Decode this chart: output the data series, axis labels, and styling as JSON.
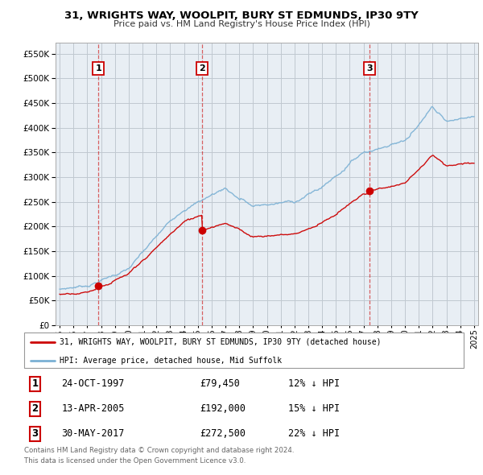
{
  "title": "31, WRIGHTS WAY, WOOLPIT, BURY ST EDMUNDS, IP30 9TY",
  "subtitle": "Price paid vs. HM Land Registry's House Price Index (HPI)",
  "sale_year_floats": [
    1997.81,
    2005.29,
    2017.41
  ],
  "sale_prices": [
    79450,
    192000,
    272500
  ],
  "sale_labels": [
    "1",
    "2",
    "3"
  ],
  "legend_line1": "31, WRIGHTS WAY, WOOLPIT, BURY ST EDMUNDS, IP30 9TY (detached house)",
  "legend_line2": "HPI: Average price, detached house, Mid Suffolk",
  "table_rows": [
    [
      "1",
      "24-OCT-1997",
      "£79,450",
      "12% ↓ HPI"
    ],
    [
      "2",
      "13-APR-2005",
      "£192,000",
      "15% ↓ HPI"
    ],
    [
      "3",
      "30-MAY-2017",
      "£272,500",
      "22% ↓ HPI"
    ]
  ],
  "footnote1": "Contains HM Land Registry data © Crown copyright and database right 2024.",
  "footnote2": "This data is licensed under the Open Government Licence v3.0.",
  "red_color": "#cc0000",
  "blue_color": "#7ab0d4",
  "bg_color": "#e8eef4",
  "grid_color": "#c0c8d0",
  "ylim": [
    0,
    550000
  ],
  "xlim_start": 1994.7,
  "xlim_end": 2025.3,
  "yticks": [
    0,
    50000,
    100000,
    150000,
    200000,
    250000,
    300000,
    350000,
    400000,
    450000,
    500000,
    550000
  ],
  "xticks": [
    1995,
    1996,
    1997,
    1998,
    1999,
    2000,
    2001,
    2002,
    2003,
    2004,
    2005,
    2006,
    2007,
    2008,
    2009,
    2010,
    2011,
    2012,
    2013,
    2014,
    2015,
    2016,
    2017,
    2018,
    2019,
    2020,
    2021,
    2022,
    2023,
    2024,
    2025
  ]
}
